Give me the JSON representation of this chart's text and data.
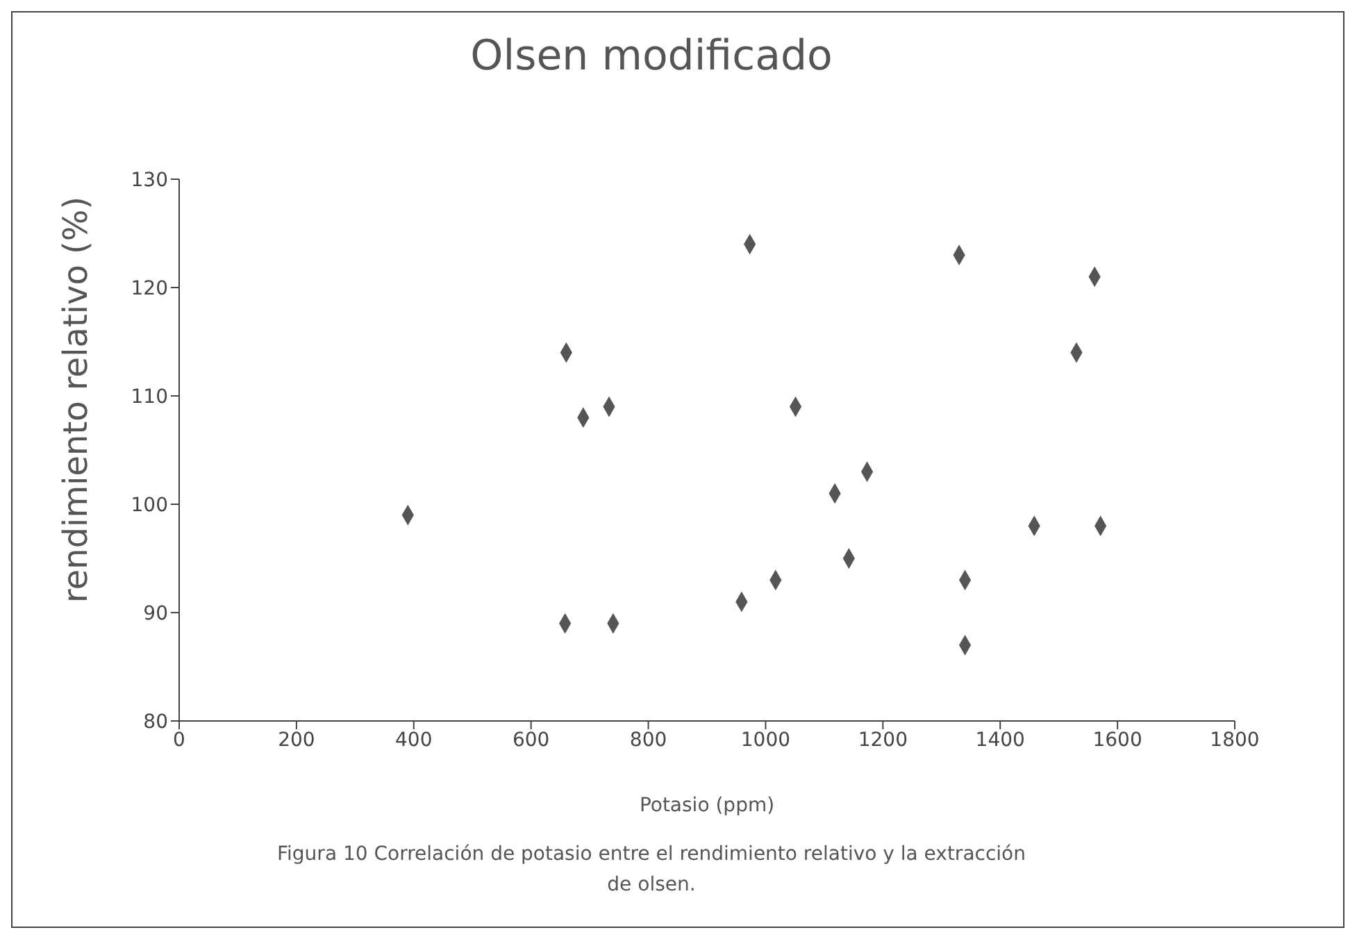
{
  "chart_data": {
    "type": "scatter",
    "title": "Olsen modificado",
    "xlabel": "Potasio (ppm)",
    "ylabel": "rendimiento relativo (%)",
    "annotations": [
      "Figura 10 Correlación de potasio entre el rendimiento relativo y la extracción de olsen."
    ],
    "x": [
      390,
      658,
      660,
      689,
      733,
      740,
      959,
      973,
      1017,
      1051,
      1118,
      1142,
      1173,
      1330,
      1340,
      1340,
      1458,
      1530,
      1561,
      1571
    ],
    "series": [
      {
        "color": "#555555",
        "values": [
          99,
          89,
          114,
          108,
          109,
          89,
          91,
          124,
          93,
          109,
          101,
          95,
          103,
          123,
          93,
          87,
          98,
          114,
          121,
          98
        ]
      }
    ],
    "xlim": [
      0,
      1800
    ],
    "xticks": [
      0,
      200,
      400,
      600,
      800,
      1000,
      1200,
      1400,
      1600,
      1800
    ],
    "ylim": [
      80,
      130
    ],
    "yticks": [
      80,
      90,
      100,
      110,
      120,
      130
    ],
    "grid": false,
    "legend": false,
    "marker": "diamond"
  }
}
